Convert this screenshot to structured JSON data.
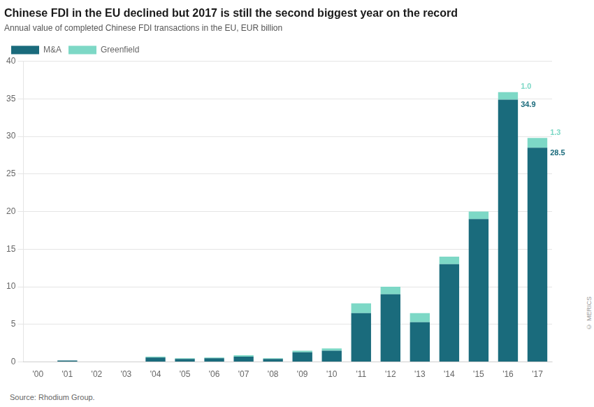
{
  "chart_data": {
    "type": "bar",
    "stacked": true,
    "title": "Chinese FDI in the EU declined but 2017 is still the second biggest year on the record",
    "subtitle": "Annual value of completed Chinese FDI transactions in the EU, EUR billion",
    "source": "Source: Rhodium Group.",
    "copyright": "© MERICS",
    "categories": [
      "'00",
      "'01",
      "'02",
      "'03",
      "'04",
      "'05",
      "'06",
      "'07",
      "'08",
      "'09",
      "'10",
      "'11",
      "'12",
      "'13",
      "'14",
      "'15",
      "'16",
      "'17"
    ],
    "series": [
      {
        "name": "M&A",
        "color": "#1a6b7c",
        "values": [
          0.05,
          0.2,
          0.05,
          0.05,
          0.6,
          0.4,
          0.5,
          0.7,
          0.4,
          1.3,
          1.5,
          6.5,
          9.0,
          5.3,
          13.0,
          19.0,
          34.9,
          28.5
        ]
      },
      {
        "name": "Greenfield",
        "color": "#7dd8c6",
        "values": [
          0.0,
          0.0,
          0.0,
          0.0,
          0.1,
          0.1,
          0.1,
          0.2,
          0.1,
          0.2,
          0.3,
          1.3,
          1.0,
          1.2,
          1.0,
          1.0,
          1.0,
          1.3
        ]
      }
    ],
    "annotations": [
      {
        "text": "1.0",
        "category": "'16",
        "series": "Greenfield"
      },
      {
        "text": "34.9",
        "category": "'16",
        "series": "M&A"
      },
      {
        "text": "1.3",
        "category": "'17",
        "series": "Greenfield"
      },
      {
        "text": "28.5",
        "category": "'17",
        "series": "M&A"
      }
    ],
    "ylim": [
      0,
      40
    ],
    "yticks": [
      0,
      5,
      10,
      15,
      20,
      25,
      30,
      35,
      40
    ],
    "grid": true,
    "legend": "top left"
  }
}
